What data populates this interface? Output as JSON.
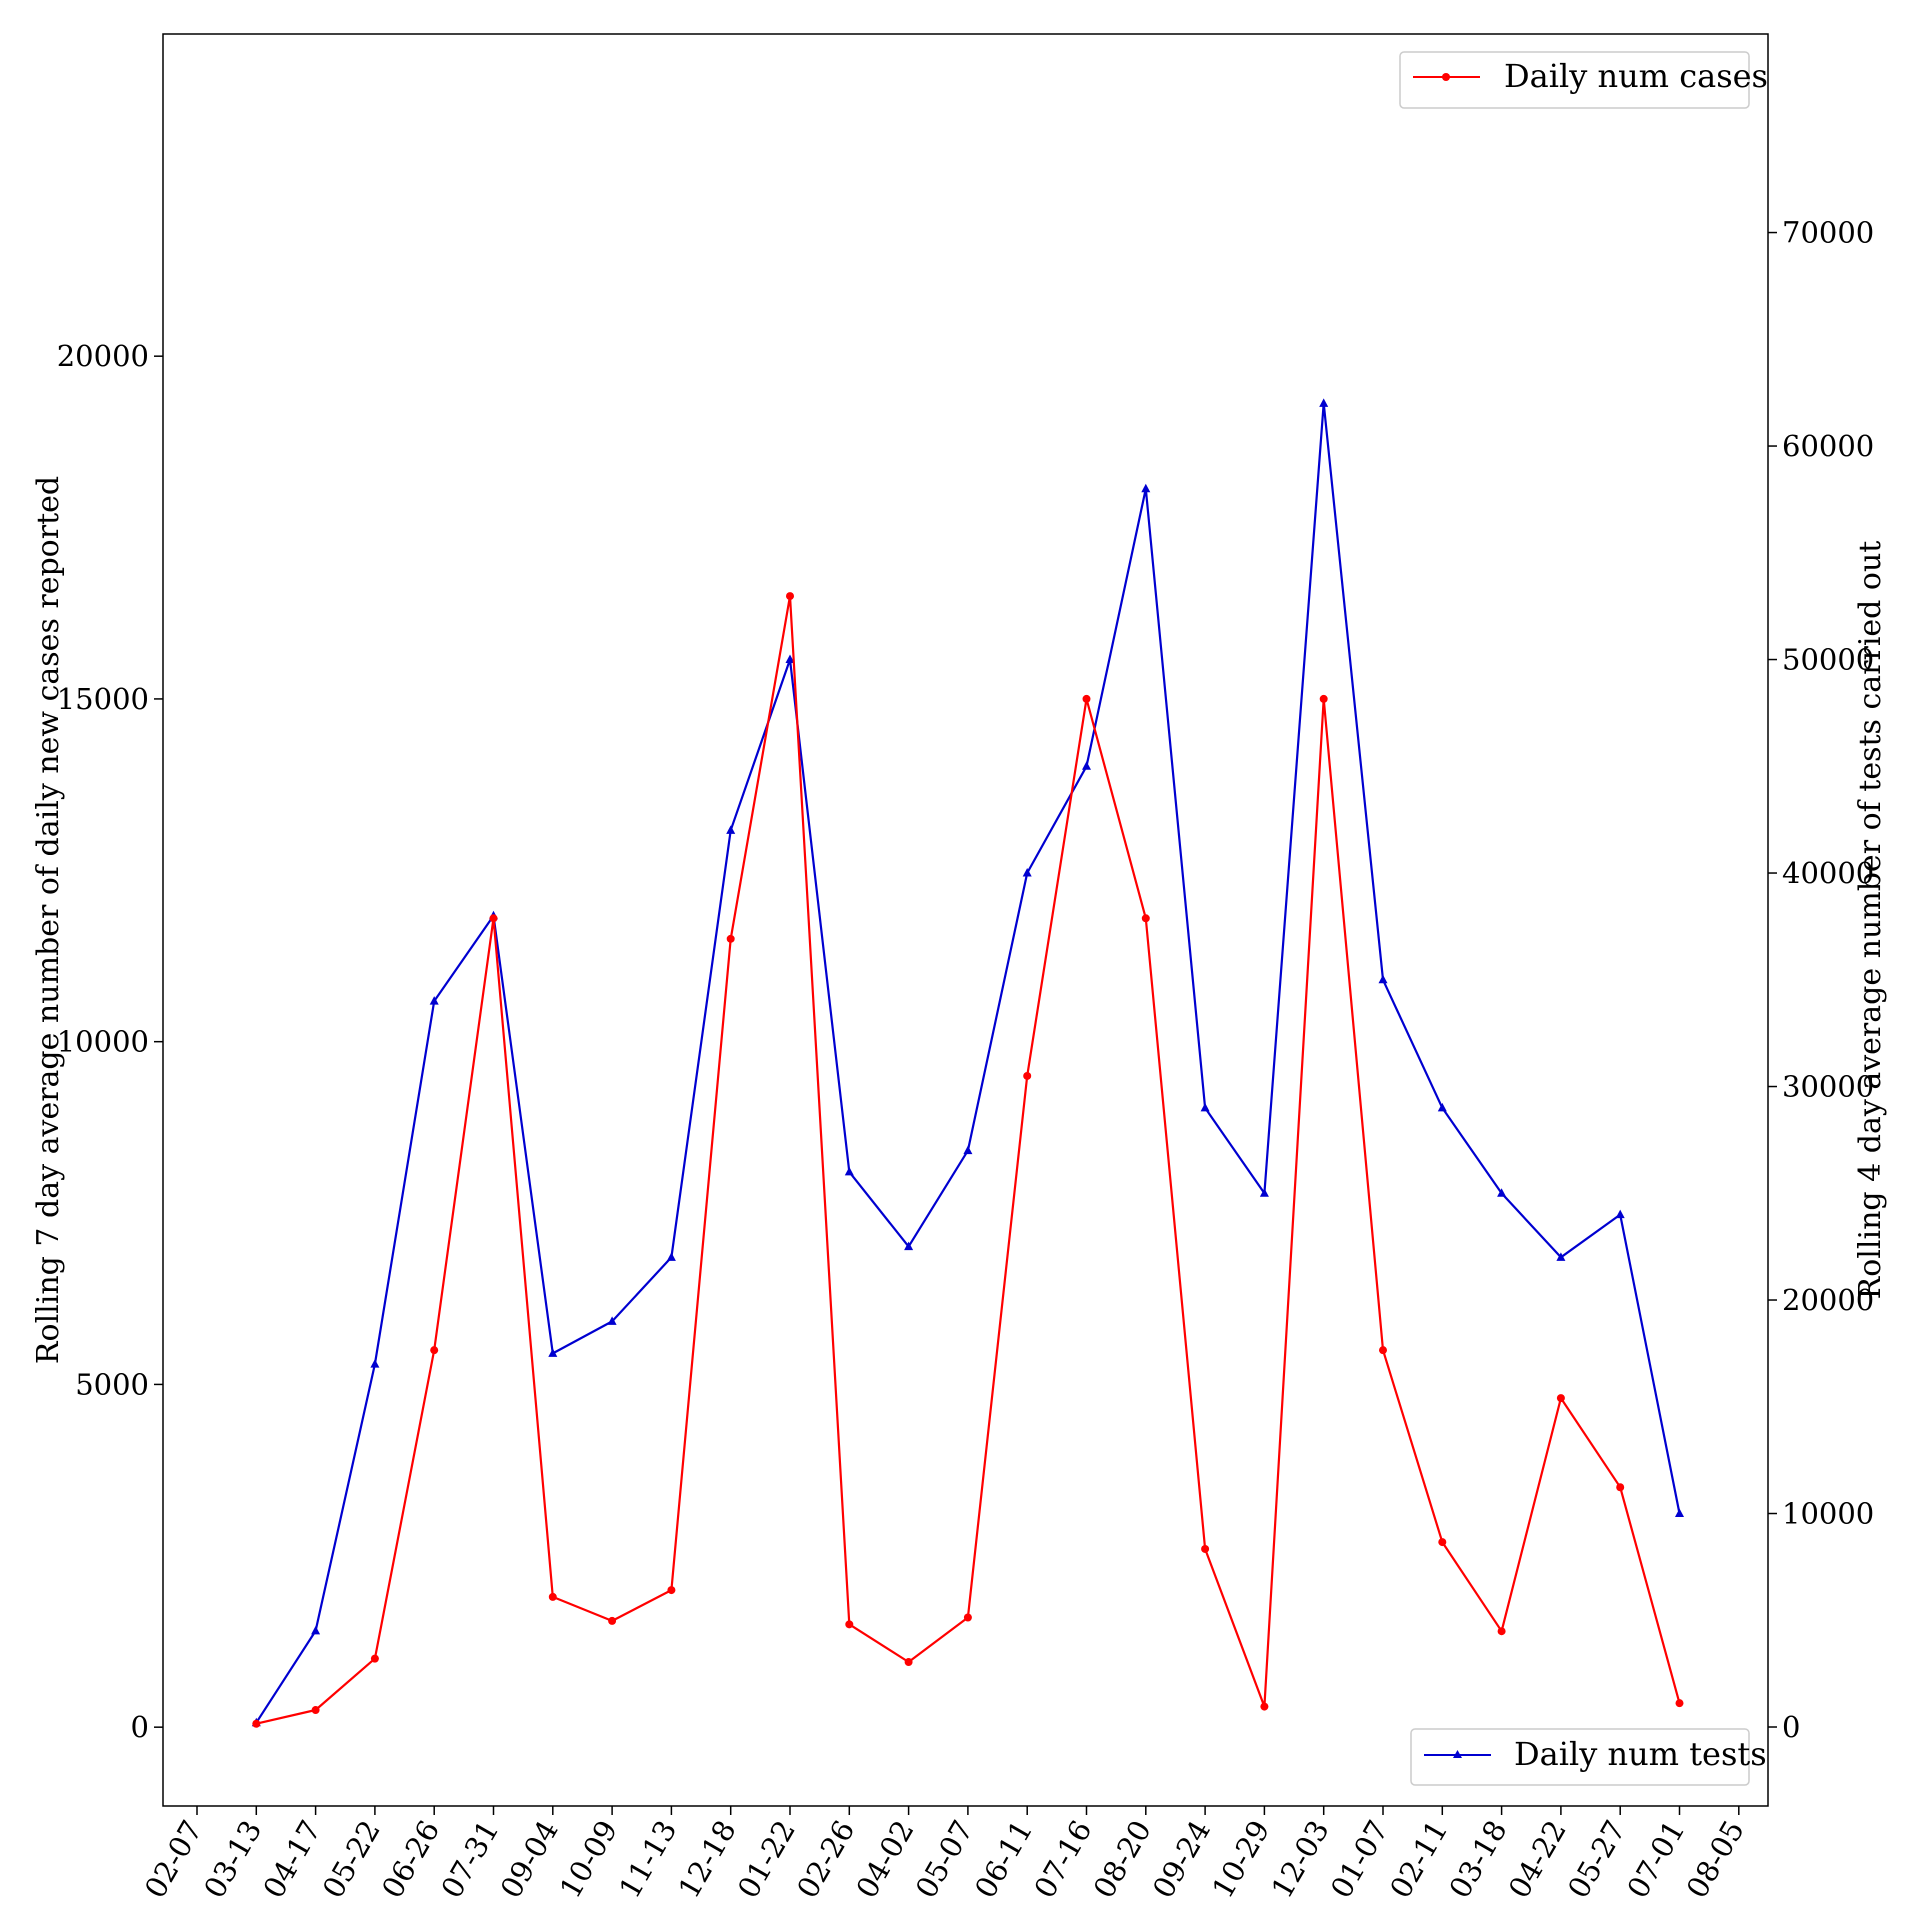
{
  "chart_data": {
    "type": "line",
    "title": "",
    "xlabel": "",
    "ylabel_left": "Rolling 7 day average number of daily new cases reported",
    "ylabel_right": "Rolling 4 day average number of tests carried out",
    "x_tick_labels": [
      "02-07",
      "03-13",
      "04-17",
      "05-22",
      "06-26",
      "07-31",
      "09-04",
      "10-09",
      "11-13",
      "12-18",
      "01-22",
      "02-26",
      "04-02",
      "05-07",
      "06-11",
      "07-16",
      "08-20",
      "09-24",
      "10-29",
      "12-03",
      "01-07",
      "02-11",
      "03-18",
      "04-22",
      "05-27",
      "07-01",
      "08-05"
    ],
    "y_left_ticks": [
      0,
      5000,
      10000,
      15000,
      20000
    ],
    "y_left_lim": [
      -1150,
      24700
    ],
    "y_right_ticks": [
      0,
      10000,
      20000,
      30000,
      40000,
      50000,
      60000,
      70000
    ],
    "y_right_lim": [
      -3700,
      79300
    ],
    "grid": false,
    "series": [
      {
        "name": "Daily num cases",
        "axis": "left",
        "color": "#ff0000",
        "marker": "circle",
        "legend_position": "top-right",
        "points": [
          [
            "02-07",
            null
          ],
          [
            "03-13",
            50
          ],
          [
            "04-17",
            250
          ],
          [
            "05-22",
            1000
          ],
          [
            "06-26",
            5500
          ],
          [
            "07-31",
            11800
          ],
          [
            "09-04",
            1900
          ],
          [
            "10-09",
            1550
          ],
          [
            "11-13",
            2000
          ],
          [
            "12-18",
            11500
          ],
          [
            "01-22",
            16500
          ],
          [
            "02-26",
            1500
          ],
          [
            "04-02",
            950
          ],
          [
            "05-07",
            1600
          ],
          [
            "06-11",
            9500
          ],
          [
            "07-16",
            15000
          ],
          [
            "08-20",
            11800
          ],
          [
            "09-24",
            2600
          ],
          [
            "10-29",
            300
          ],
          [
            "12-03",
            15000
          ],
          [
            "01-07",
            5500
          ],
          [
            "02-11",
            2700
          ],
          [
            "03-18",
            1400
          ],
          [
            "04-22",
            4800
          ],
          [
            "05-27",
            3500
          ],
          [
            "07-01",
            350
          ],
          [
            "08-05",
            null
          ]
        ]
      },
      {
        "name": "Daily num tests",
        "axis": "right",
        "color": "#0000d0",
        "marker": "triangle",
        "legend_position": "bottom-right",
        "points": [
          [
            "02-07",
            null
          ],
          [
            "03-13",
            200
          ],
          [
            "04-17",
            4500
          ],
          [
            "05-22",
            17000
          ],
          [
            "06-26",
            34000
          ],
          [
            "07-31",
            38000
          ],
          [
            "09-04",
            17500
          ],
          [
            "10-09",
            19000
          ],
          [
            "11-13",
            22000
          ],
          [
            "12-18",
            42000
          ],
          [
            "01-22",
            50000
          ],
          [
            "02-26",
            26000
          ],
          [
            "04-02",
            22500
          ],
          [
            "05-07",
            27000
          ],
          [
            "06-11",
            40000
          ],
          [
            "07-16",
            45000
          ],
          [
            "08-20",
            58000
          ],
          [
            "09-24",
            29000
          ],
          [
            "10-29",
            25000
          ],
          [
            "12-03",
            62000
          ],
          [
            "01-07",
            35000
          ],
          [
            "02-11",
            29000
          ],
          [
            "03-18",
            25000
          ],
          [
            "04-22",
            22000
          ],
          [
            "05-27",
            24000
          ],
          [
            "07-01",
            10000
          ],
          [
            "08-05",
            null
          ]
        ]
      }
    ]
  }
}
